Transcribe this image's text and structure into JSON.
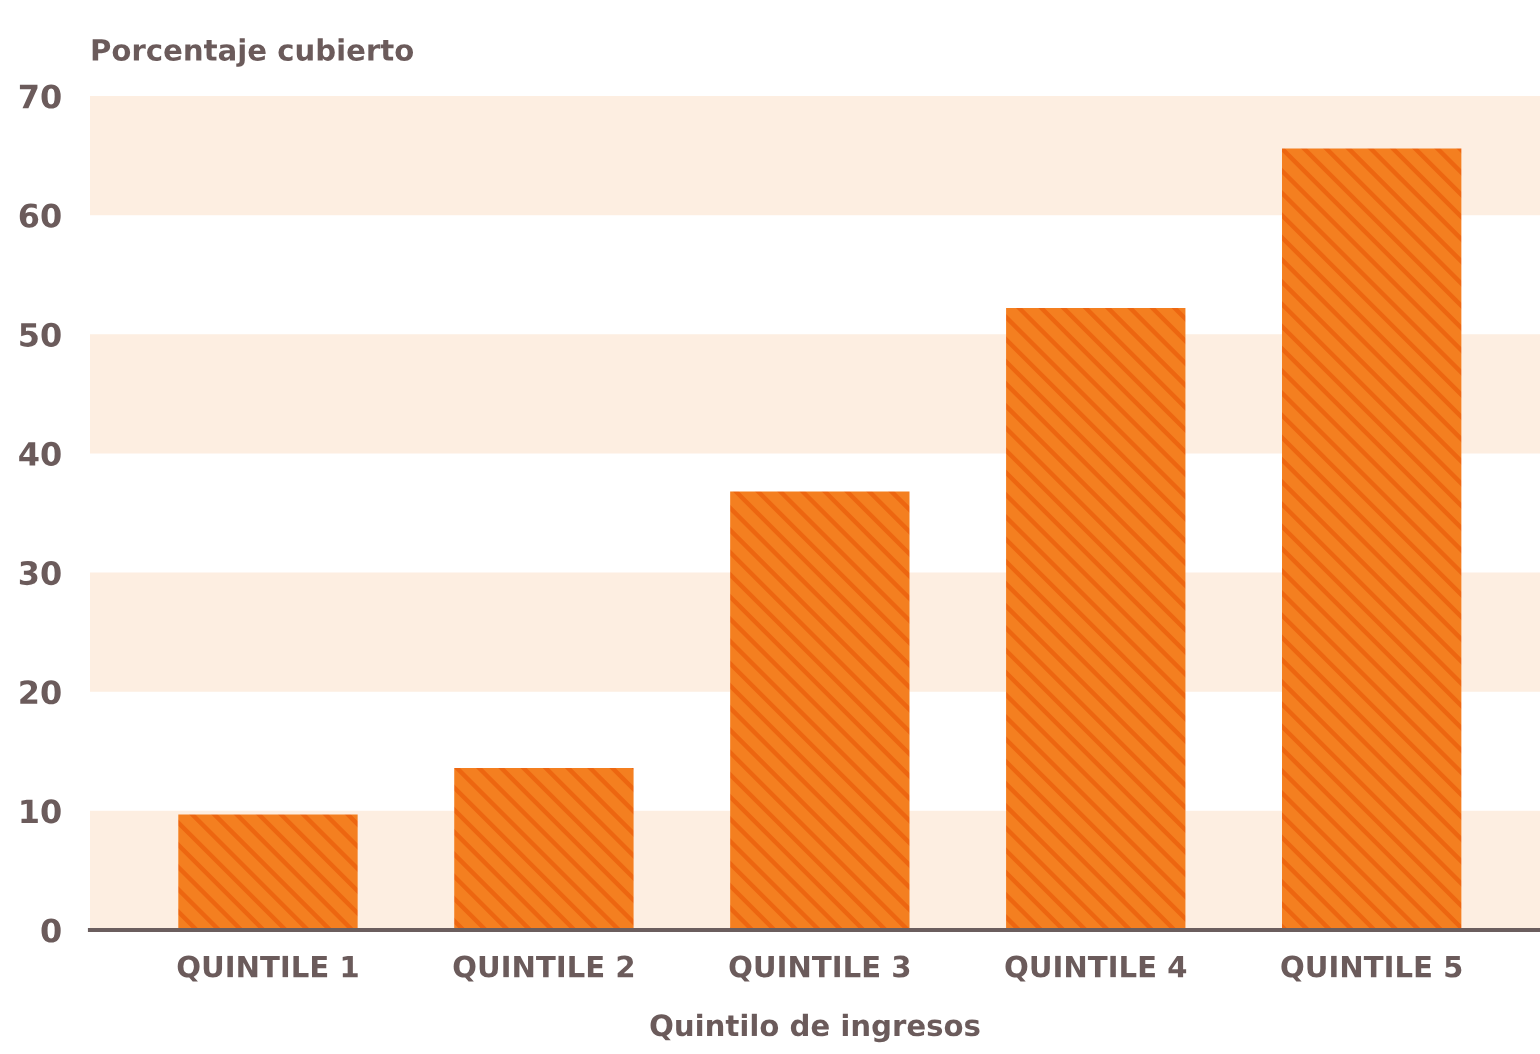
{
  "chart_data": {
    "type": "bar",
    "ylabel": "Porcentaje cubierto",
    "xlabel": "Quintilo de ingresos",
    "categories": [
      "QUINTILE 1",
      "QUINTILE 2",
      "QUINTILE 3",
      "QUINTILE 4",
      "QUINTILE 5"
    ],
    "values": [
      9.7,
      13.6,
      36.8,
      52.2,
      65.6
    ],
    "color": "#f47f20",
    "ylim": [
      0,
      70
    ],
    "yticks": [
      0,
      10,
      20,
      30,
      40,
      50,
      60,
      70
    ],
    "grid": false,
    "bands": [
      {
        "axis": "y",
        "from": 0,
        "to": 10,
        "color": "#fdeee1"
      },
      {
        "axis": "y",
        "from": 20,
        "to": 30,
        "color": "#fdeee1"
      },
      {
        "axis": "y",
        "from": 40,
        "to": 50,
        "color": "#fdeee1"
      },
      {
        "axis": "y",
        "from": 60,
        "to": 70,
        "color": "#fdeee1"
      }
    ]
  }
}
